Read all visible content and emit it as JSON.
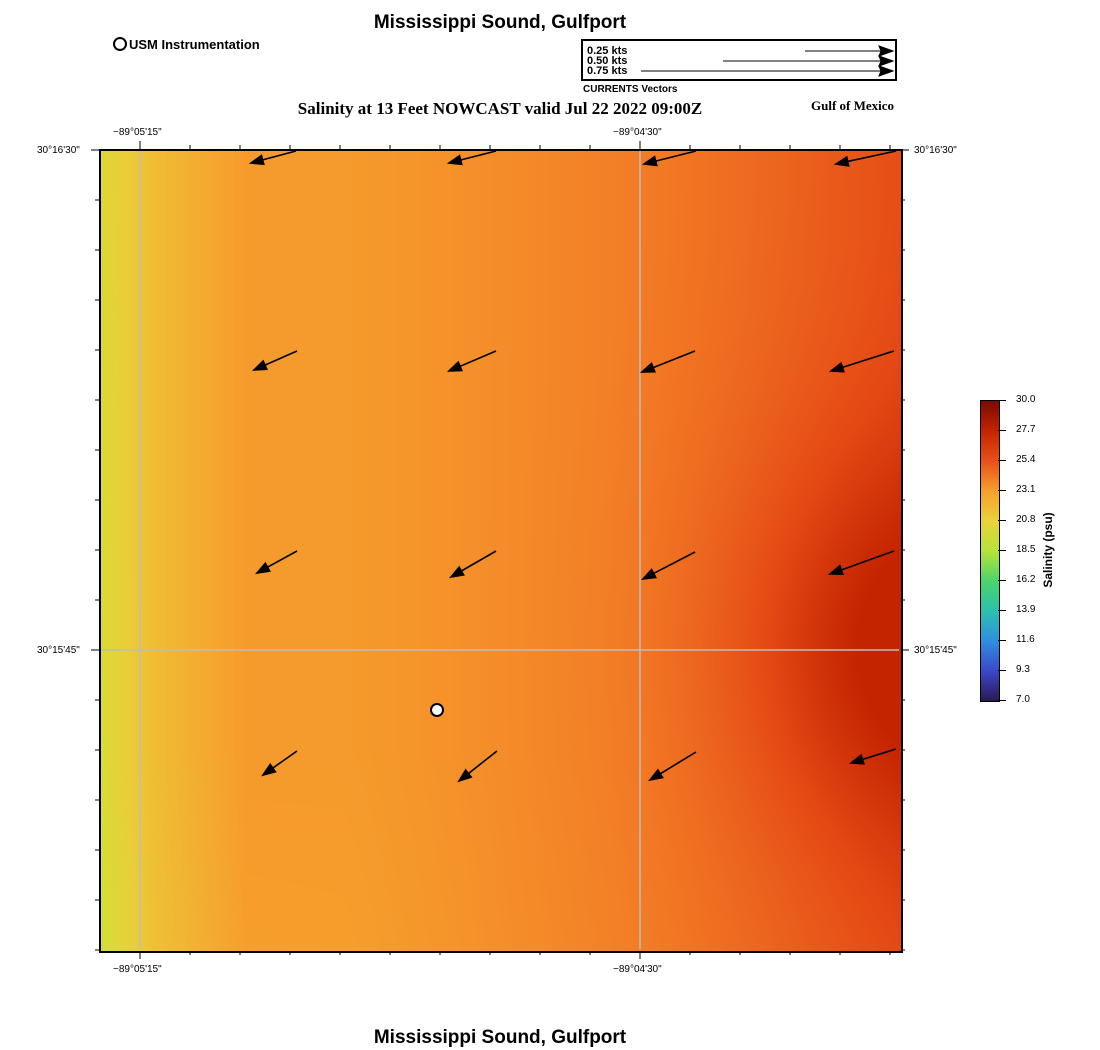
{
  "header": {
    "title": "Mississippi Sound, Gulfport",
    "subtitle": "Salinity at 13 Feet NOWCAST valid Jul 22 2022 09:00Z",
    "region_label": "Gulf of Mexico",
    "station_legend": "USM Instrumentation"
  },
  "footer": {
    "title": "Mississippi Sound, Gulfport"
  },
  "vector_key": {
    "rows": [
      "0.25 kts",
      "0.50 kts",
      "0.75 kts"
    ],
    "caption": "CURRENTS Vectors"
  },
  "axes": {
    "lon_labels": [
      "−89°05'15\"",
      "−89°04'30\""
    ],
    "lat_labels": [
      "30°16'30\"",
      "30°15'45\""
    ]
  },
  "colorbar": {
    "title": "Salinity (psu)",
    "ticks": [
      "30.0",
      "27.7",
      "25.4",
      "23.1",
      "20.8",
      "18.5",
      "16.2",
      "13.9",
      "11.6",
      "9.3",
      "7.0"
    ],
    "range": [
      7.0,
      30.0
    ]
  },
  "colors": {
    "frame": "#000000",
    "grid": "#bdbdbd",
    "station_fill": "#ffffff",
    "salinity_low": "#d2e43a",
    "salinity_mid": "#f4a02e",
    "salinity_high": "#c42400"
  }
}
